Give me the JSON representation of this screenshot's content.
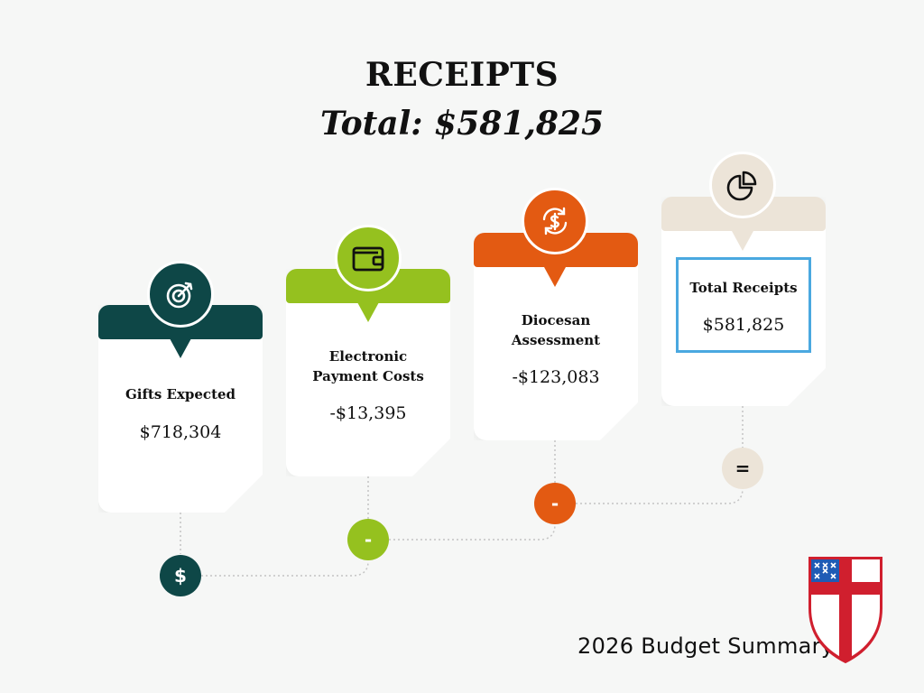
{
  "header": {
    "title": "RECEIPTS",
    "subtitle": "Total: $581,825"
  },
  "colors": {
    "teal": "#0e4747",
    "green": "#95c11f",
    "orange": "#e35a12",
    "beige": "#ece4d8",
    "blue_border": "#4aa8e0",
    "shield_red": "#d01f2e"
  },
  "cards": [
    {
      "label": "Gifts Expected",
      "value": "$718,304",
      "icon": "target-icon",
      "operator": "$"
    },
    {
      "label": "Electronic Payment Costs",
      "value": "-$13,395",
      "icon": "wallet-icon",
      "operator": "-"
    },
    {
      "label": "Diocesan Assessment",
      "value": "-$123,083",
      "icon": "dollar-cycle-icon",
      "operator": "-"
    },
    {
      "label": "Total Receipts",
      "value": "$581,825",
      "icon": "pie-chart-icon",
      "operator": "="
    }
  ],
  "footer": {
    "text": "2026 Budget Summary",
    "logo": "episcopal-shield-logo"
  }
}
